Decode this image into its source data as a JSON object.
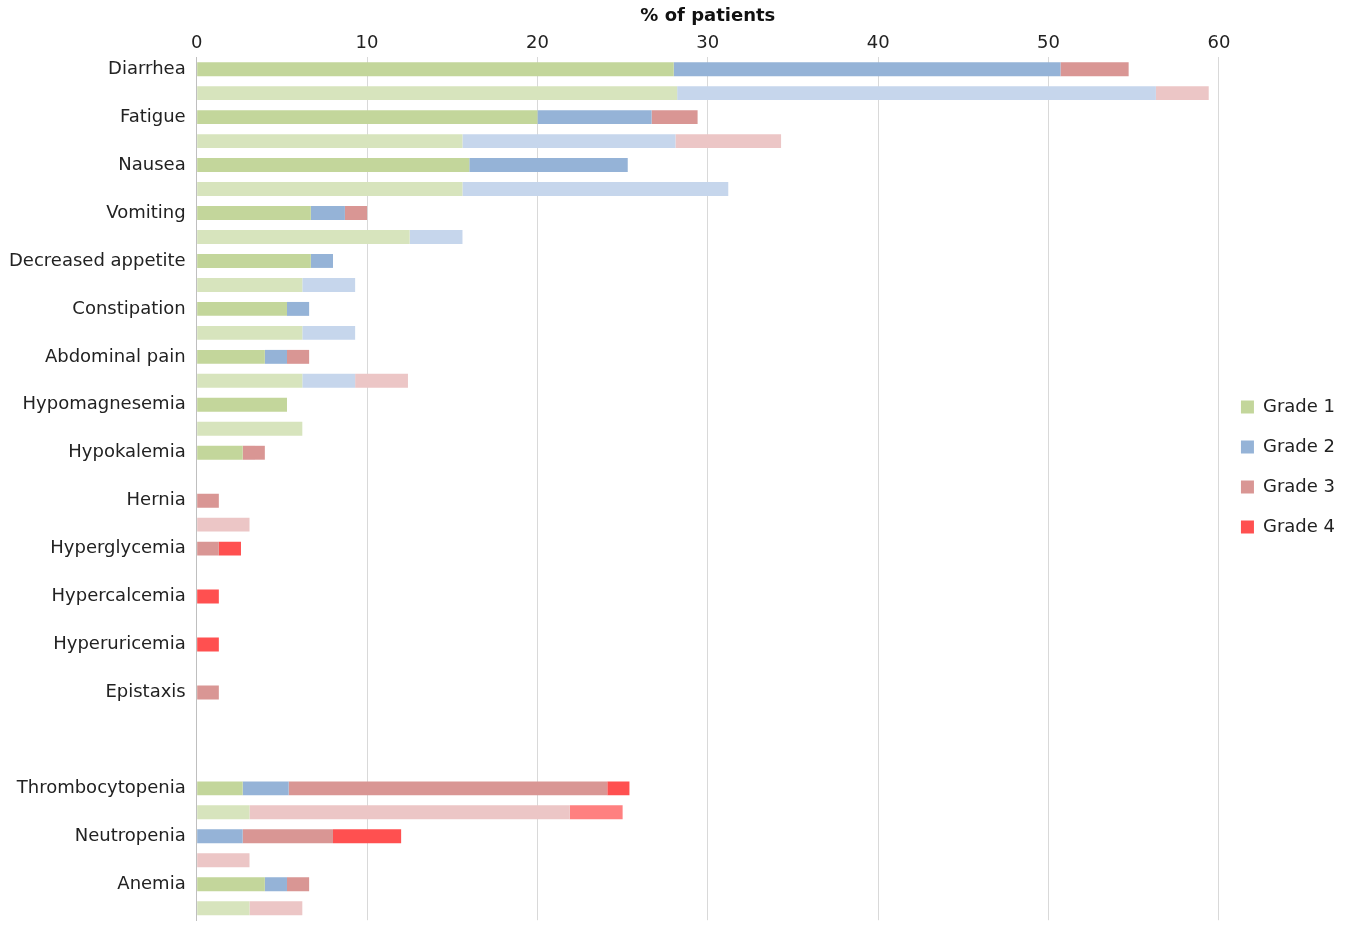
{
  "chart_data": {
    "type": "bar",
    "orientation": "horizontal",
    "stacked": true,
    "xlabel": "% of patients",
    "xlim": [
      0,
      60
    ],
    "xticks": [
      0,
      10,
      20,
      30,
      40,
      50,
      60
    ],
    "grid": "x",
    "legend": "right",
    "categories": [
      "Diarrhea",
      null,
      "Fatigue",
      null,
      "Nausea",
      null,
      "Vomiting",
      null,
      "Decreased appetite",
      null,
      "Constipation",
      null,
      "Abdominal pain",
      null,
      "Hypomagnesemia",
      null,
      "Hypokalemia",
      null,
      "Hernia",
      null,
      "Hyperglycemia",
      null,
      "Hypercalcemia",
      null,
      "Hyperuricemia",
      null,
      "Epistaxis",
      null,
      null,
      null,
      "Thrombocytopenia",
      null,
      "Neutropenia",
      null,
      "Anemia",
      null
    ],
    "series": [
      {
        "name": "Grade 1",
        "color": "#c3d69b",
        "values": [
          28.0,
          null,
          20.0,
          null,
          16.0,
          null,
          6.7,
          null,
          6.7,
          null,
          5.3,
          null,
          4.0,
          null,
          5.3,
          null,
          2.7,
          null,
          null,
          null,
          null,
          null,
          null,
          null,
          null,
          null,
          null,
          null,
          null,
          null,
          2.7,
          null,
          null,
          null,
          4.0,
          null
        ]
      },
      {
        "name": "Grade 2",
        "color": "#95b3d7",
        "values": [
          22.7,
          null,
          6.7,
          null,
          9.3,
          null,
          2.0,
          null,
          1.3,
          null,
          1.3,
          null,
          1.3,
          null,
          null,
          null,
          null,
          null,
          null,
          null,
          null,
          null,
          null,
          null,
          null,
          null,
          null,
          null,
          null,
          null,
          2.7,
          null,
          2.7,
          null,
          1.3,
          null
        ]
      },
      {
        "name": "Grade 3",
        "color": "#d99694",
        "values": [
          4.0,
          null,
          2.7,
          null,
          null,
          null,
          1.3,
          null,
          null,
          null,
          null,
          null,
          1.3,
          null,
          null,
          null,
          1.3,
          null,
          1.3,
          null,
          1.3,
          null,
          null,
          null,
          null,
          null,
          1.3,
          null,
          null,
          null,
          18.7,
          null,
          5.3,
          null,
          1.3,
          null
        ]
      },
      {
        "name": "Grade 4",
        "color": "#ff5050",
        "values": [
          null,
          null,
          null,
          null,
          null,
          null,
          null,
          null,
          null,
          null,
          null,
          null,
          null,
          null,
          null,
          null,
          null,
          null,
          null,
          null,
          1.3,
          null,
          1.3,
          null,
          1.3,
          null,
          null,
          null,
          null,
          null,
          1.3,
          null,
          4.0,
          null,
          null,
          null
        ]
      },
      {
        "color": "#d7e4bd",
        "values": [
          null,
          28.2,
          null,
          15.6,
          null,
          15.6,
          null,
          12.5,
          null,
          6.2,
          null,
          6.2,
          null,
          6.2,
          null,
          6.2,
          null,
          null,
          null,
          null,
          null,
          null,
          null,
          null,
          null,
          null,
          null,
          null,
          null,
          null,
          null,
          3.1,
          null,
          null,
          null,
          3.1
        ]
      },
      {
        "color": "#c6d6ec",
        "values": [
          null,
          28.1,
          null,
          12.5,
          null,
          15.6,
          null,
          3.1,
          null,
          3.1,
          null,
          3.1,
          null,
          3.1,
          null,
          null,
          null,
          null,
          null,
          null,
          null,
          null,
          null,
          null,
          null,
          null,
          null,
          null,
          null,
          null,
          null,
          null,
          null,
          null,
          null,
          null
        ]
      },
      {
        "color": "#ecc6c6",
        "values": [
          null,
          3.1,
          null,
          6.2,
          null,
          null,
          null,
          null,
          null,
          null,
          null,
          null,
          null,
          3.1,
          null,
          null,
          null,
          null,
          null,
          3.1,
          null,
          null,
          null,
          null,
          null,
          null,
          null,
          null,
          null,
          null,
          null,
          18.8,
          null,
          3.1,
          null,
          3.1
        ]
      },
      {
        "color": "#ff8080",
        "values": [
          null,
          null,
          null,
          null,
          null,
          null,
          null,
          null,
          null,
          null,
          null,
          null,
          null,
          null,
          null,
          null,
          null,
          null,
          null,
          null,
          null,
          null,
          null,
          null,
          null,
          null,
          null,
          null,
          null,
          null,
          null,
          3.1,
          null,
          null,
          null,
          null
        ]
      }
    ]
  }
}
